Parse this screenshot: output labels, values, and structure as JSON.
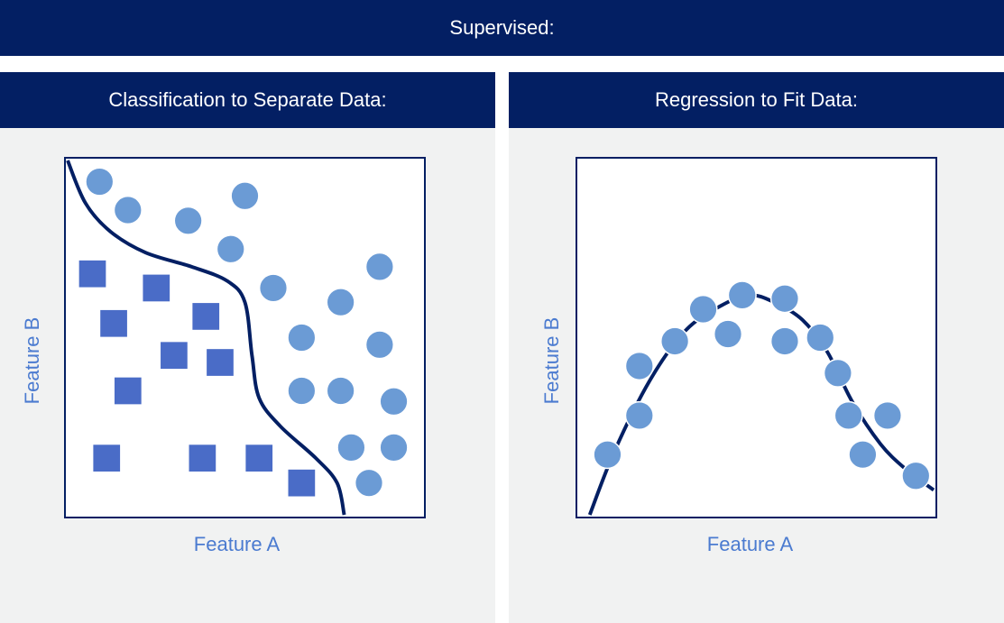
{
  "header": {
    "title": "Supervised:"
  },
  "panels": {
    "classification": {
      "title": "Classification to Separate Data:",
      "xlabel": "Feature A",
      "ylabel": "Feature B"
    },
    "regression": {
      "title": "Regression to Fit Data:",
      "xlabel": "Feature A",
      "ylabel": "Feature B"
    }
  },
  "colors": {
    "navy": "#031f63",
    "circle": "#6b9bd5",
    "square": "#4a6cc7",
    "label": "#4b7bd0",
    "panel_bg": "#f1f2f2"
  },
  "chart_data": [
    {
      "type": "scatter",
      "title": "Classification to Separate Data:",
      "xlabel": "Feature A",
      "ylabel": "Feature B",
      "xlim": [
        0,
        100
      ],
      "ylim": [
        0,
        100
      ],
      "series": [
        {
          "marker": "circle",
          "points": [
            [
              9,
              94
            ],
            [
              17,
              86
            ],
            [
              34,
              83
            ],
            [
              50,
              90
            ],
            [
              46,
              75
            ],
            [
              58,
              64
            ],
            [
              77,
              60
            ],
            [
              88,
              70
            ],
            [
              66,
              50
            ],
            [
              88,
              48
            ],
            [
              66,
              35
            ],
            [
              77,
              35
            ],
            [
              92,
              32
            ],
            [
              80,
              19
            ],
            [
              92,
              19
            ],
            [
              85,
              9
            ]
          ]
        },
        {
          "marker": "square",
          "points": [
            [
              7,
              68
            ],
            [
              25,
              64
            ],
            [
              13,
              54
            ],
            [
              39,
              56
            ],
            [
              30,
              45
            ],
            [
              43,
              43
            ],
            [
              17,
              35
            ],
            [
              11,
              16
            ],
            [
              38,
              16
            ],
            [
              54,
              16
            ],
            [
              66,
              9
            ]
          ]
        }
      ],
      "decision_boundary": [
        [
          0,
          100
        ],
        [
          5,
          88
        ],
        [
          12,
          80
        ],
        [
          22,
          74
        ],
        [
          35,
          70
        ],
        [
          45,
          66
        ],
        [
          50,
          60
        ],
        [
          52,
          45
        ],
        [
          54,
          33
        ],
        [
          60,
          25
        ],
        [
          70,
          16
        ],
        [
          76,
          9
        ],
        [
          78,
          0
        ]
      ]
    },
    {
      "type": "scatter",
      "title": "Regression to Fit Data:",
      "xlabel": "Feature A",
      "ylabel": "Feature B",
      "xlim": [
        0,
        100
      ],
      "ylim": [
        0,
        100
      ],
      "series": [
        {
          "marker": "circle",
          "points": [
            [
              8,
              17
            ],
            [
              17,
              28
            ],
            [
              17,
              42
            ],
            [
              27,
              49
            ],
            [
              35,
              58
            ],
            [
              42,
              51
            ],
            [
              46,
              62
            ],
            [
              58,
              61
            ],
            [
              58,
              49
            ],
            [
              68,
              50
            ],
            [
              73,
              40
            ],
            [
              76,
              28
            ],
            [
              80,
              17
            ],
            [
              87,
              28
            ],
            [
              95,
              11
            ]
          ]
        }
      ],
      "fit_curve": [
        [
          3,
          0
        ],
        [
          10,
          18
        ],
        [
          20,
          38
        ],
        [
          30,
          52
        ],
        [
          40,
          59
        ],
        [
          48,
          62
        ],
        [
          55,
          60
        ],
        [
          63,
          55
        ],
        [
          70,
          46
        ],
        [
          77,
          32
        ],
        [
          85,
          20
        ],
        [
          92,
          13
        ],
        [
          100,
          7
        ]
      ]
    }
  ]
}
